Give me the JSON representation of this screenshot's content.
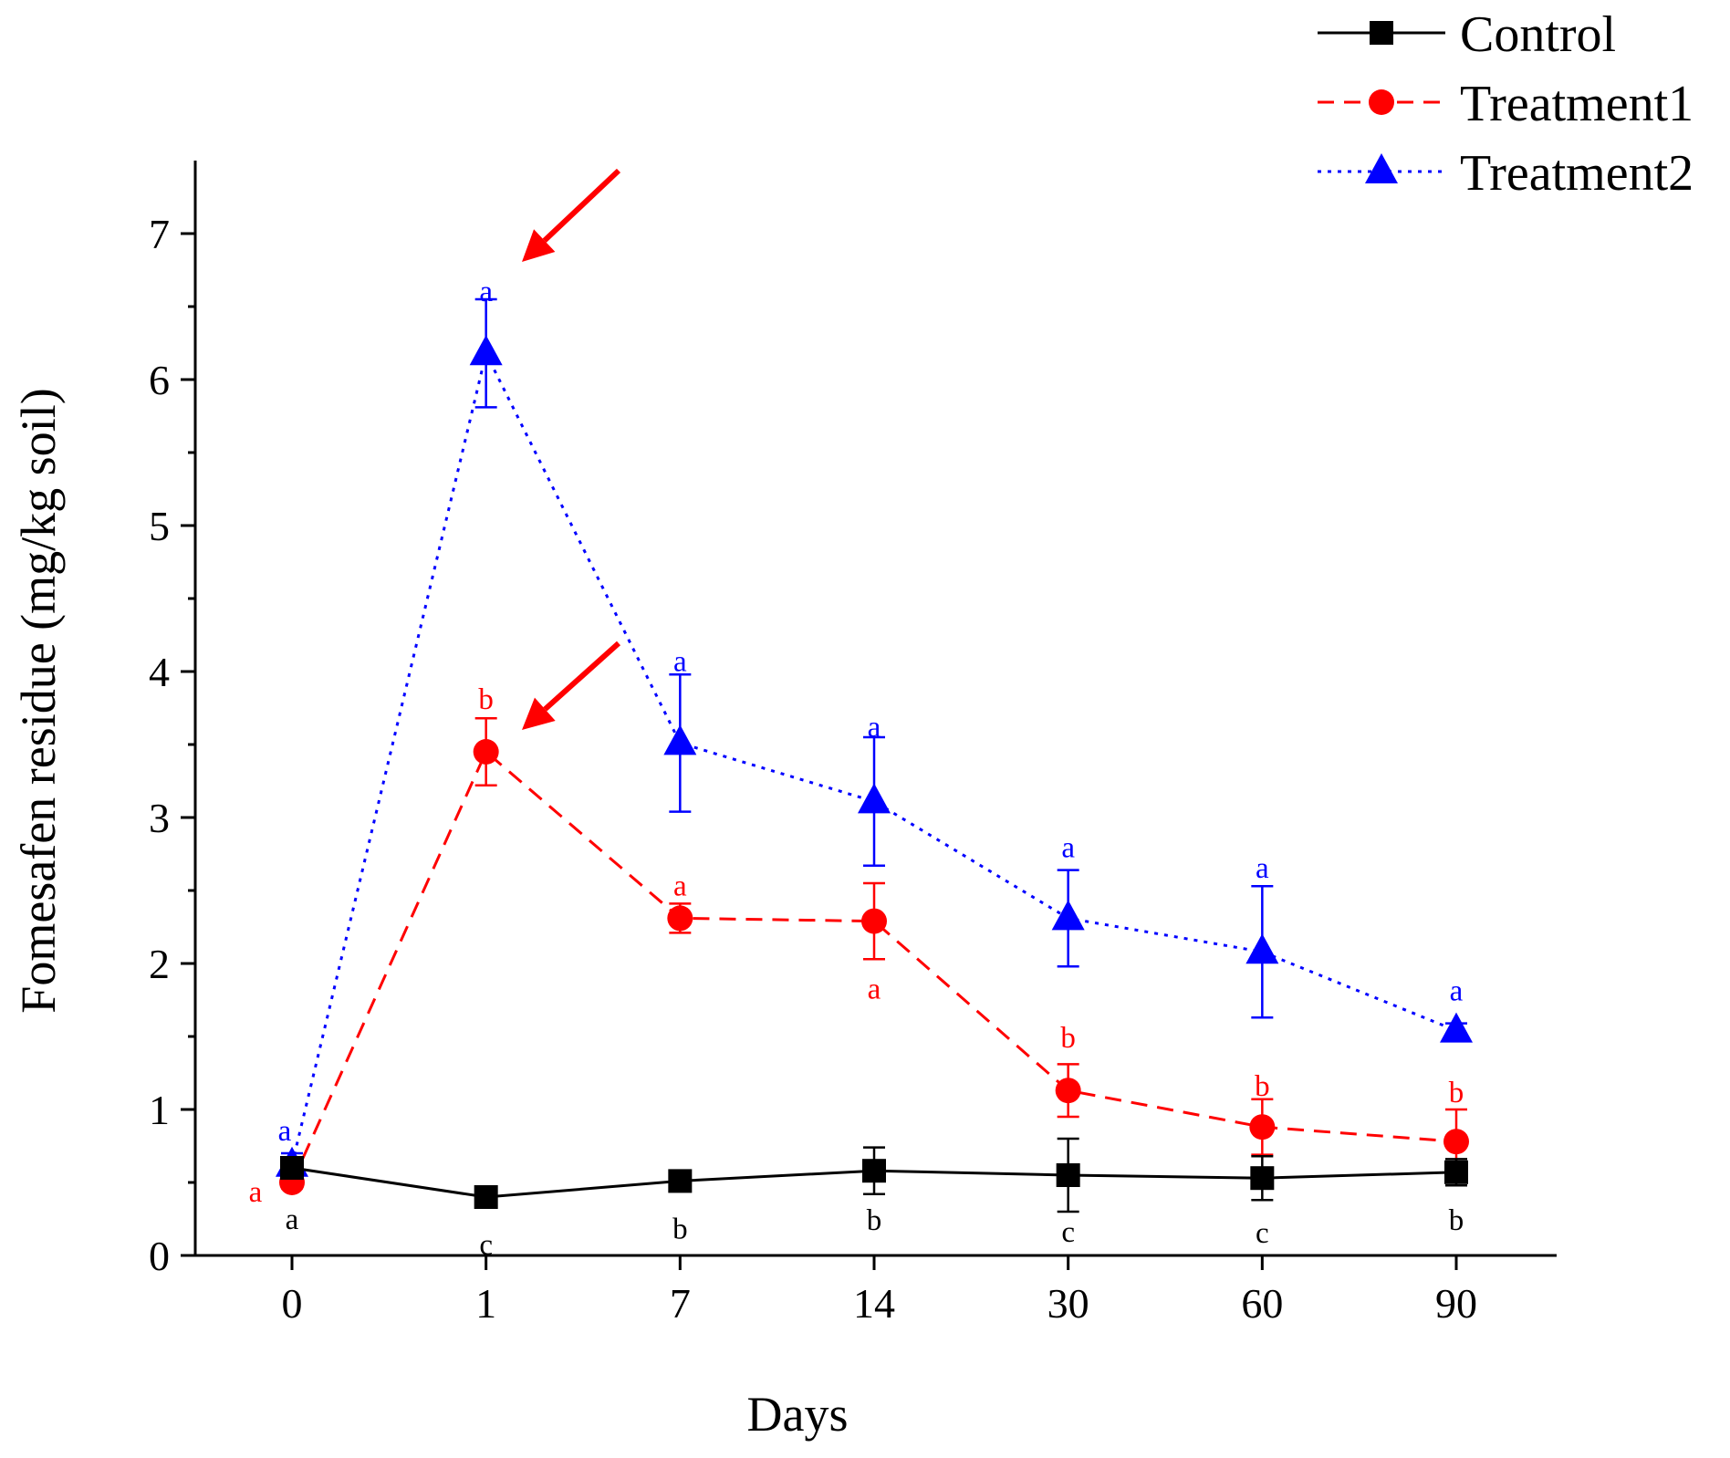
{
  "chart_data": {
    "type": "line",
    "title": "",
    "xlabel": "Days",
    "ylabel": "Fomesafen residue (mg/kg soil)",
    "categories": [
      "0",
      "1",
      "7",
      "14",
      "30",
      "60",
      "90"
    ],
    "ylim": [
      0,
      7.5
    ],
    "yticks": [
      0,
      1,
      2,
      3,
      4,
      5,
      6,
      7
    ],
    "grid": false,
    "legend_position": "top-right",
    "series": [
      {
        "name": "Control",
        "color": "#000000",
        "line_style": "solid",
        "marker": "square",
        "values": [
          0.6,
          0.4,
          0.51,
          0.58,
          0.55,
          0.53,
          0.57
        ],
        "errors": [
          0.06,
          0.03,
          0.04,
          0.16,
          0.25,
          0.15,
          0.09
        ],
        "letters": [
          "a",
          "c",
          "b",
          "b",
          "c",
          "c",
          "b"
        ]
      },
      {
        "name": "Treatment1",
        "color": "#ff0000",
        "line_style": "dashed",
        "marker": "circle",
        "values": [
          0.5,
          3.45,
          2.31,
          2.29,
          1.13,
          0.88,
          0.78
        ],
        "errors": [
          0.04,
          0.23,
          0.1,
          0.26,
          0.18,
          0.19,
          0.22
        ],
        "letters": [
          "a",
          "b",
          "a",
          "a",
          "b",
          "b",
          "b"
        ]
      },
      {
        "name": "Treatment2",
        "color": "#0000ff",
        "line_style": "dotted",
        "marker": "triangle",
        "values": [
          0.62,
          6.18,
          3.51,
          3.11,
          2.31,
          2.08,
          1.54
        ],
        "errors": [
          0.08,
          0.37,
          0.47,
          0.44,
          0.33,
          0.45,
          0.05
        ],
        "letters": [
          "a",
          "a",
          "a",
          "a",
          "a",
          "a",
          "a"
        ]
      }
    ],
    "annotations": [
      {
        "type": "arrow",
        "color": "#ff0000",
        "points_to": {
          "series": "Treatment2",
          "category": "1"
        }
      },
      {
        "type": "arrow",
        "color": "#ff0000",
        "points_to": {
          "series": "Treatment1",
          "category": "1"
        }
      }
    ]
  }
}
